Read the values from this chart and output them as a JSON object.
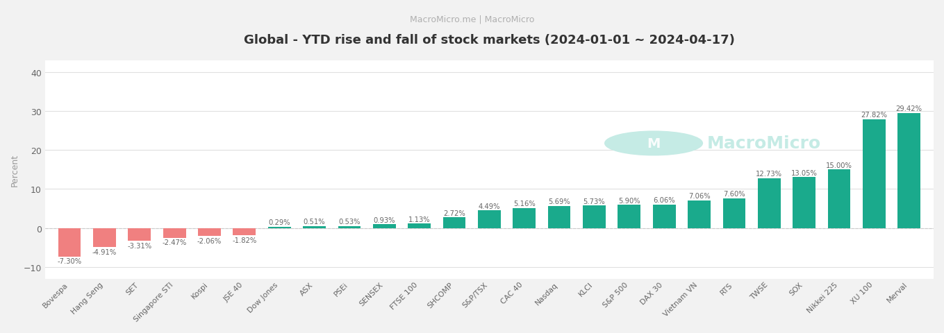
{
  "title": "Global - YTD rise and fall of stock markets (2024-01-01 ~ 2024-04-17)",
  "subtitle": "MacroMicro.me | MacroMicro",
  "ylabel": "Percent",
  "categories": [
    "Bovespa",
    "Hang Seng",
    "SET",
    "Singapore STI",
    "Kospi",
    "JSE 40",
    "Dow Jones",
    "ASX",
    "PSEi",
    "SENSEX",
    "FTSE 100",
    "SHCOMP",
    "S&P/TSX",
    "CAC 40",
    "Nasdaq",
    "KLCI",
    "S&P 500",
    "DAX 30",
    "Vietnam VN",
    "RTS",
    "TWSE",
    "SOX",
    "Nikkei 225",
    "XU 100",
    "Merval"
  ],
  "values": [
    -7.3,
    -4.91,
    -3.31,
    -2.47,
    -2.06,
    -1.82,
    0.29,
    0.51,
    0.53,
    0.93,
    1.13,
    2.72,
    4.49,
    5.16,
    5.69,
    5.73,
    5.9,
    6.06,
    7.06,
    7.6,
    12.73,
    13.05,
    15.0,
    27.82,
    29.42
  ],
  "positive_color": "#1aaa8c",
  "negative_color": "#f08080",
  "bg_color": "#f2f2f2",
  "plot_bg_color": "#ffffff",
  "grid_color": "#e0e0e0",
  "title_color": "#333333",
  "subtitle_color": "#b0b0b0",
  "label_color": "#666666",
  "ylabel_color": "#999999",
  "ylim": [
    -13,
    43
  ],
  "yticks": [
    -10,
    0,
    10,
    20,
    30,
    40
  ],
  "watermark_text": "MacroMicro",
  "watermark_color": "#c5ebe5",
  "title_fontsize": 13,
  "subtitle_fontsize": 9,
  "label_fontsize": 7.8,
  "value_fontsize": 7.2,
  "axis_tick_fontsize": 9
}
